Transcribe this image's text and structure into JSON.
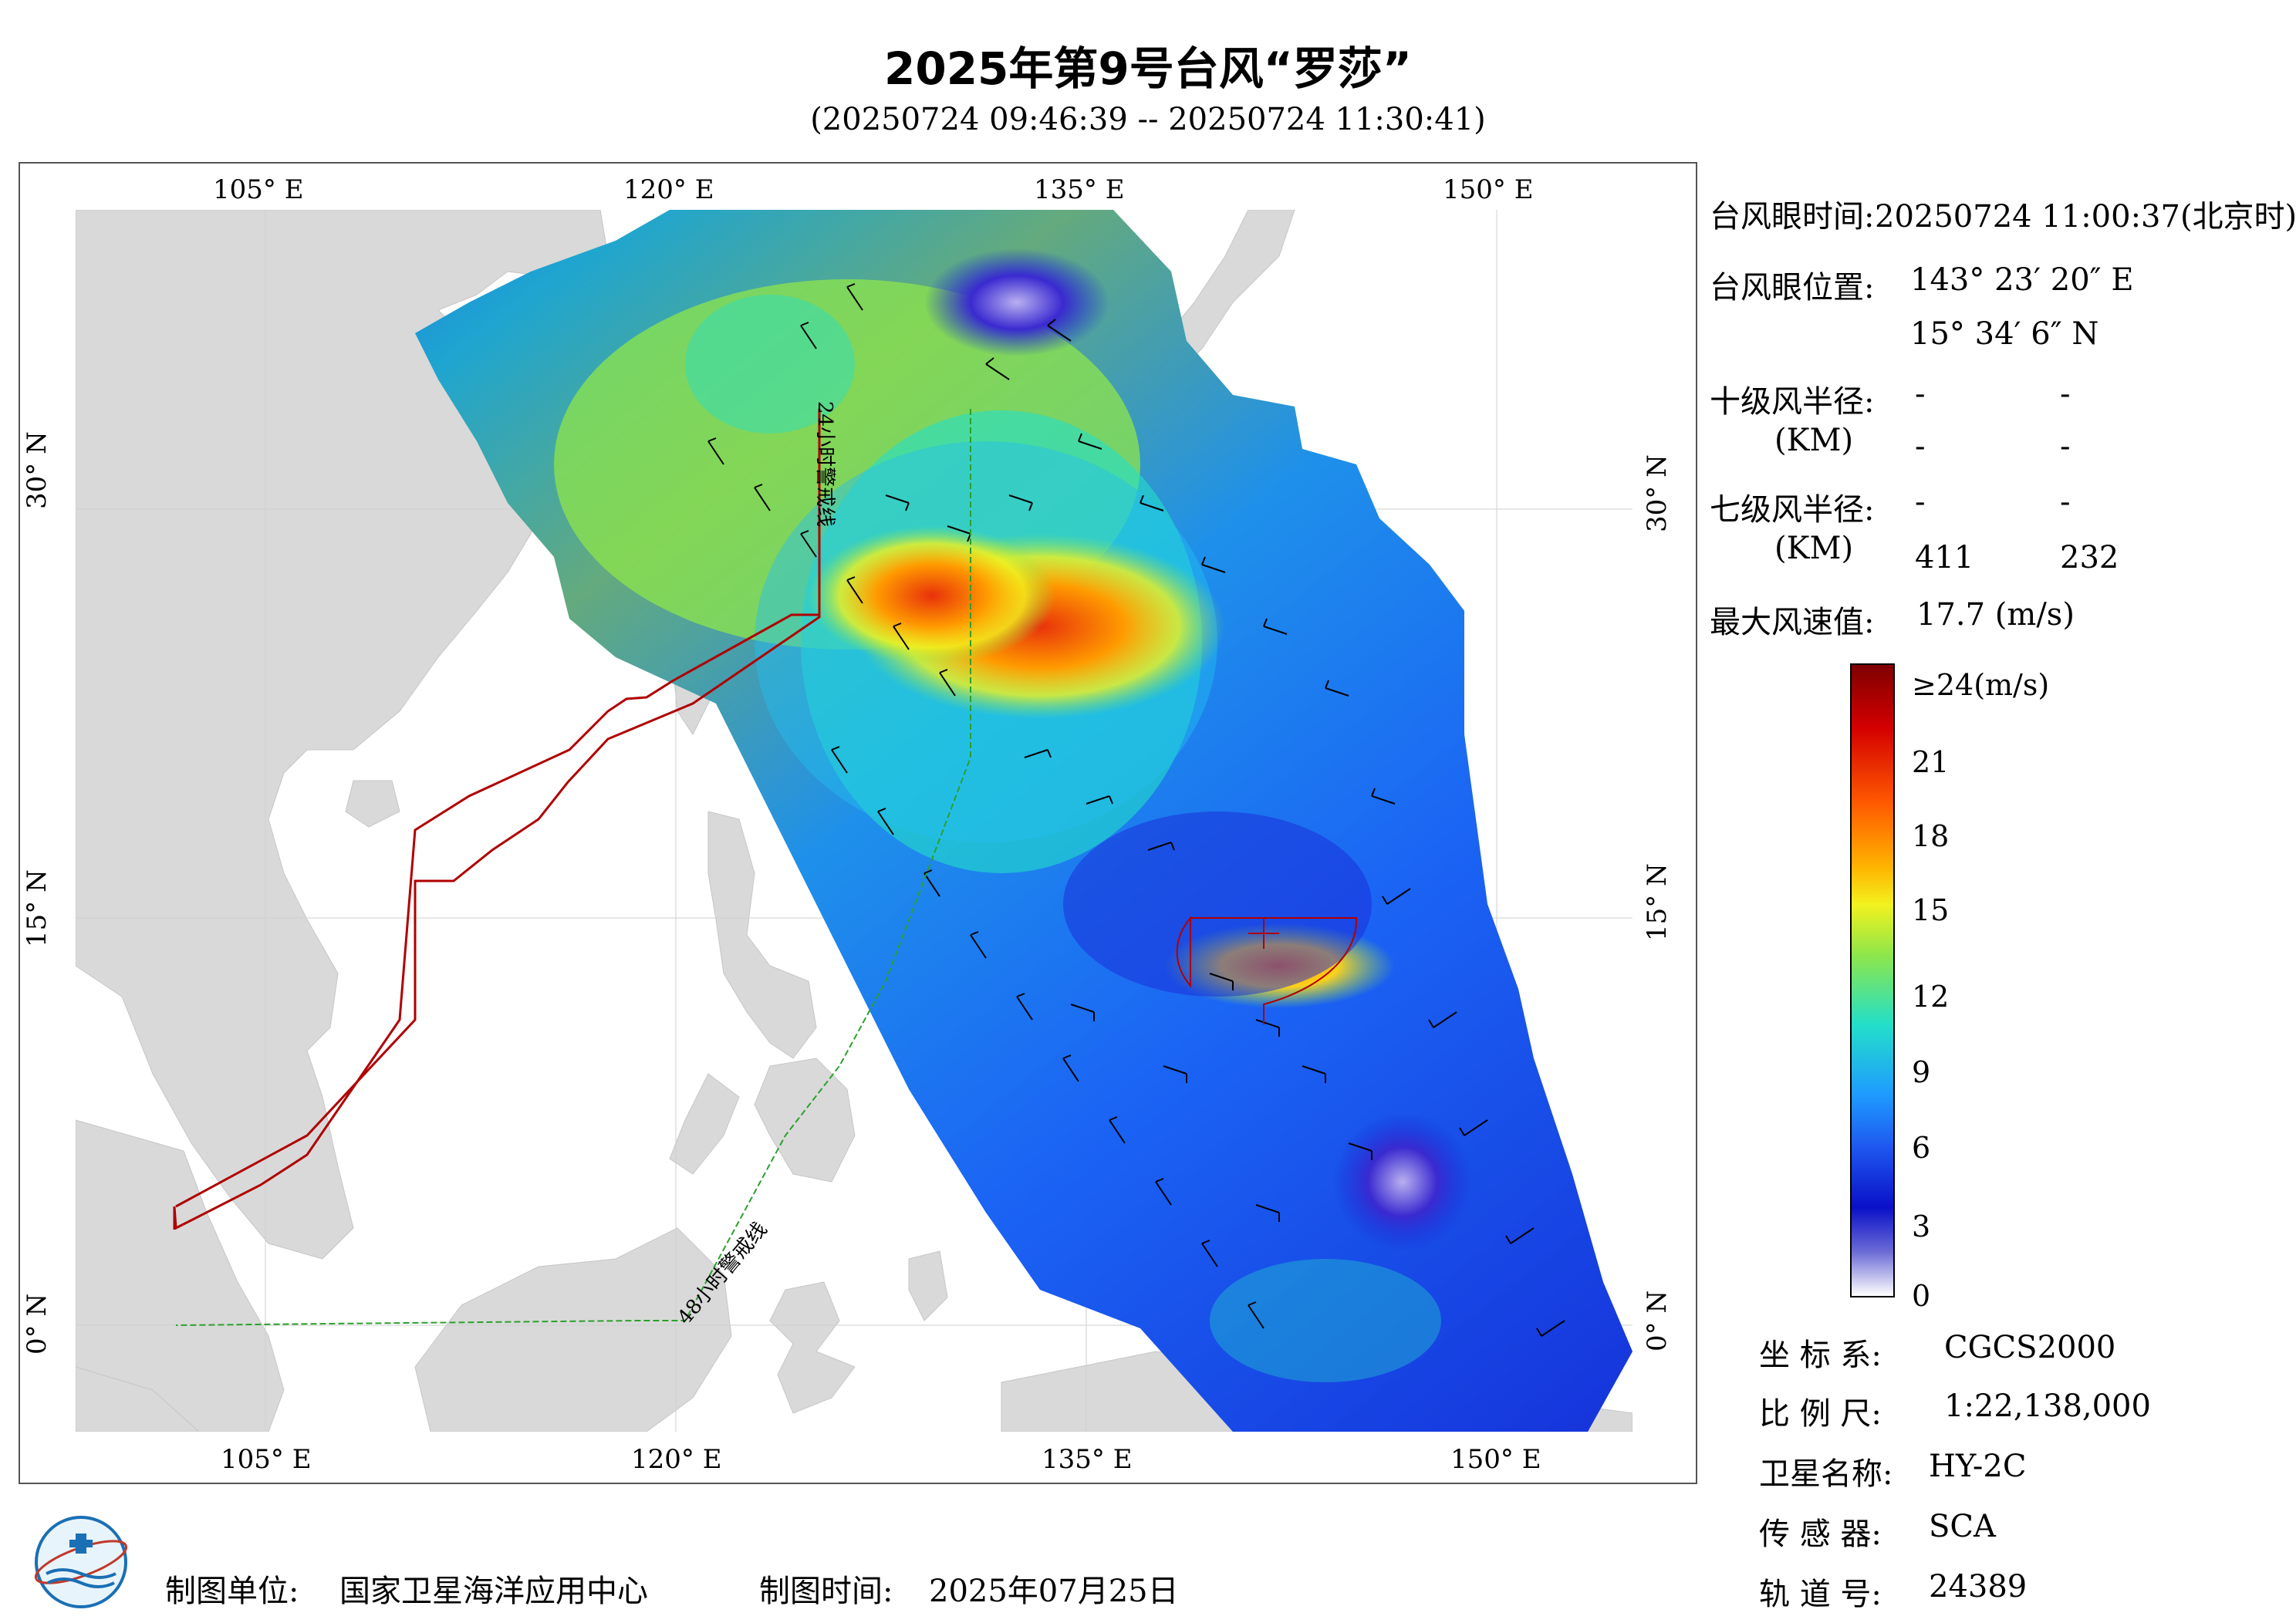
{
  "header": {
    "title": "2025年第9号台风“罗莎”",
    "subtitle": "(20250724 09:46:39 -- 20250724 11:30:41)"
  },
  "map": {
    "lon_ticks": [
      "105° E",
      "120° E",
      "135° E",
      "150° E"
    ],
    "lat_ticks": [
      "30° N",
      "15° N",
      "0° N"
    ],
    "warning_24h": "24小时警戒线",
    "warning_48h": "48小时警戒线",
    "colors": {
      "land": "#d9d9d9",
      "sea": "#ffffff",
      "line_24h": "#b00000",
      "line_48h": "#2ca02c",
      "center": "#b00000"
    }
  },
  "info": {
    "eye_time_label": "台风眼时间:",
    "eye_time_value": "20250724 11:00:37(北京时)",
    "eye_pos_label": "台风眼位置:",
    "eye_lon": "143° 23′ 20″ E",
    "eye_lat": "15° 34′ 6″ N",
    "r10_label": "十级风半径:",
    "km1": "(KM)",
    "r10_a1": "-",
    "r10_a2": "-",
    "r10_b1": "-",
    "r10_b2": "-",
    "r7_label": "七级风半径:",
    "km2": "(KM)",
    "r7_a1": "-",
    "r7_a2": "-",
    "r7_b1": "411",
    "r7_b2": "232",
    "max_label": "最大风速值:",
    "max_value": "17.7  (m/s)"
  },
  "colorbar": {
    "labels": [
      "≥24(m/s)",
      "21",
      "18",
      "15",
      "12",
      "9",
      "6",
      "3",
      "0"
    ],
    "stops": [
      "#7f0000",
      "#d40000",
      "#ff5a00",
      "#ffb300",
      "#f2f21e",
      "#8ee64a",
      "#23dfc9",
      "#1e9cff",
      "#1f5bf0",
      "#0a10c8",
      "#6b6bd6",
      "#ffffff"
    ]
  },
  "meta": {
    "coord_label": "坐 标 系:",
    "coord_value": "CGCS2000",
    "scale_label": "比 例 尺:",
    "scale_value": "1:22,138,000",
    "sat_label": "卫星名称:",
    "sat_value": "HY-2C",
    "sensor_label": "传 感 器:",
    "sensor_value": "SCA",
    "orbit_label": "轨 道 号:",
    "orbit_value": "24389"
  },
  "footer": {
    "unit_label": "制图单位:",
    "unit_value": "国家卫星海洋应用中心",
    "date_label": "制图时间:",
    "date_value": "2025年07月25日"
  }
}
